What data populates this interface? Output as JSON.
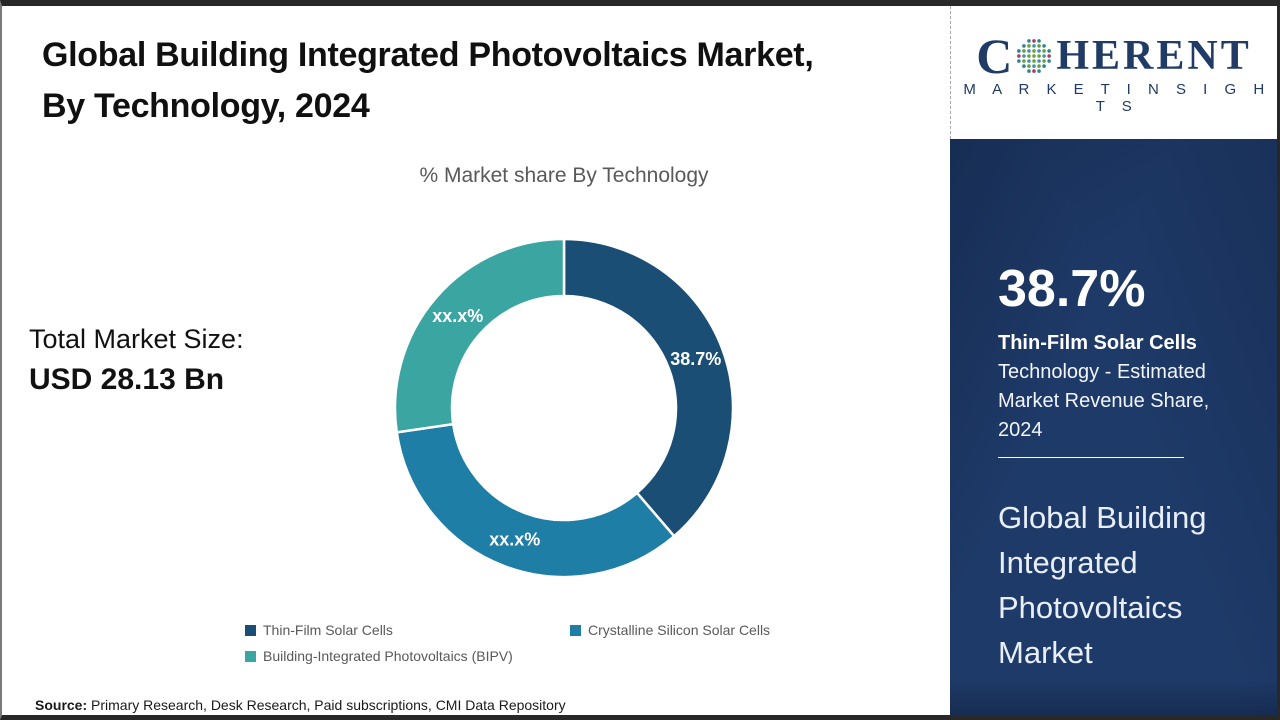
{
  "header": {
    "title_line1": "Global Building Integrated Photovoltaics Market,",
    "title_line2": "By Technology, 2024"
  },
  "left_panel": {
    "total_market_label": "Total Market Size:",
    "total_market_value": "USD 28.13 Bn"
  },
  "source": {
    "label": "Source:",
    "text": "Primary Research, Desk Research, Paid subscriptions, CMI Data Repository"
  },
  "chart_data": {
    "type": "pie",
    "subtype": "donut",
    "title": "% Market share By Technology",
    "categories": [
      "Thin-Film Solar Cells",
      "Crystalline Silicon Solar Cells",
      "Building-Integrated Photovoltaics (BIPV)"
    ],
    "values": [
      38.7,
      34.0,
      27.3
    ],
    "value_labels": [
      "38.7%",
      "xx.x%",
      "xx.x%"
    ],
    "colors": [
      "#1b4e74",
      "#1f7ea6",
      "#3aa5a1"
    ],
    "start_angle_deg": 0,
    "inner_radius_ratio": 0.66,
    "legend_position": "bottom"
  },
  "sidebar": {
    "logo": {
      "letter_c": "C",
      "letters_rest": "HERENT",
      "tagline": "M A R K E T   I N S I G H T S"
    },
    "stat_value": "38.7%",
    "stat_desc_bold": "Thin-Film Solar Cells",
    "stat_desc_rest": "Technology - Estimated Market Revenue Share, 2024",
    "market_name": "Global Building Integrated Photovoltaics Market",
    "colors": {
      "panel_bg": "#1e3a68",
      "logo_navy": "#1f3b66"
    }
  }
}
